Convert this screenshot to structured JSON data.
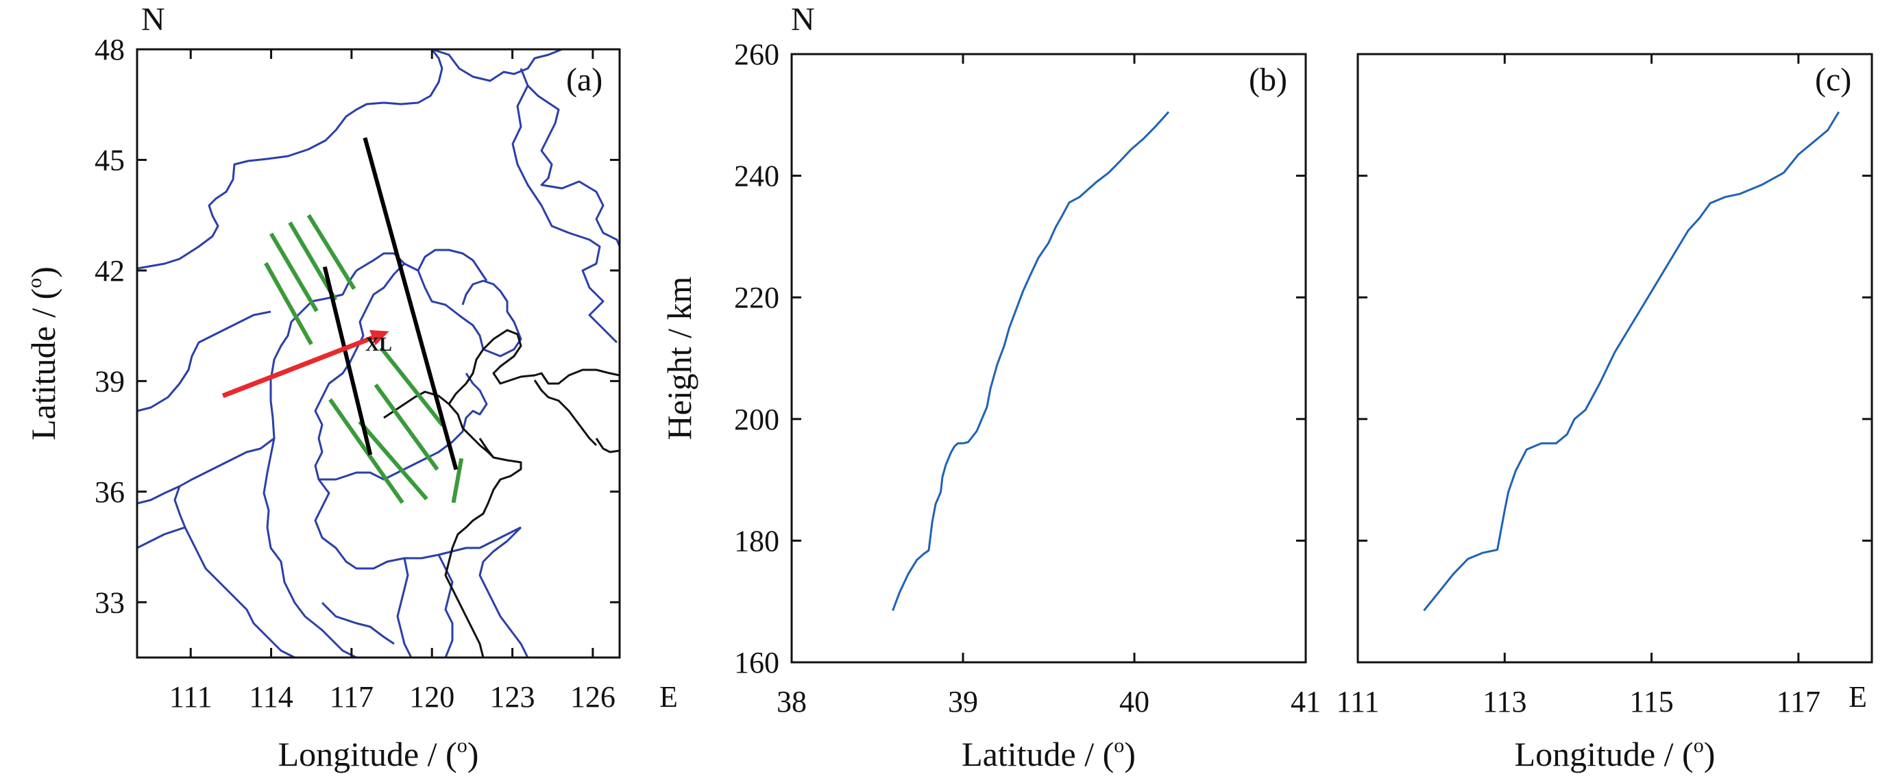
{
  "chart_data": [
    {
      "panel_label": "(a)",
      "type": "map",
      "north_label": "N",
      "xlabel": "Longitude / (",
      "xlabel_sup": "o",
      "xlabel_end": ")",
      "xlim": [
        109,
        127
      ],
      "ylim": [
        31.5,
        48
      ],
      "x_ticks": [
        "111",
        "114",
        "117",
        "120",
        "123",
        "126"
      ],
      "x_tick_values": [
        111,
        114,
        117,
        120,
        123,
        126
      ],
      "x_end_label": "E",
      "ylabel": "Latitude / (",
      "ylabel_sup": "o",
      "ylabel_end": ")",
      "y_ticks": [
        "33",
        "36",
        "39",
        "42",
        "45",
        "48"
      ],
      "y_tick_values": [
        33,
        36,
        39,
        42,
        45,
        48
      ],
      "station_label": "XL",
      "colors": {
        "boundary": "#2b3fa8",
        "coast": "#111111",
        "track": "#000000",
        "arrow": "#e8292e",
        "wave": "#3a9a3a"
      },
      "arrow": {
        "from": [
          112.2,
          38.6
        ],
        "to": [
          118.4,
          40.35
        ]
      },
      "black_lines": [
        {
          "from": [
            117.5,
            45.6
          ],
          "to": [
            120.9,
            36.6
          ]
        },
        {
          "from": [
            116.0,
            42.1
          ],
          "to": [
            117.7,
            37.0
          ]
        }
      ],
      "green_lines": [
        {
          "from": [
            114.0,
            43.0
          ],
          "to": [
            115.7,
            40.9
          ]
        },
        {
          "from": [
            114.7,
            43.3
          ],
          "to": [
            116.4,
            41.2
          ]
        },
        {
          "from": [
            115.4,
            43.5
          ],
          "to": [
            117.1,
            41.5
          ]
        },
        {
          "from": [
            113.8,
            42.2
          ],
          "to": [
            115.5,
            40.0
          ]
        },
        {
          "from": [
            118.1,
            39.9
          ],
          "to": [
            120.4,
            37.8
          ]
        },
        {
          "from": [
            117.9,
            38.9
          ],
          "to": [
            120.2,
            36.6
          ]
        },
        {
          "from": [
            117.3,
            37.9
          ],
          "to": [
            119.8,
            35.8
          ]
        },
        {
          "from": [
            116.2,
            38.5
          ],
          "to": [
            118.9,
            35.7
          ]
        },
        {
          "from": [
            121.1,
            36.9
          ],
          "to": [
            120.8,
            35.7
          ]
        }
      ]
    },
    {
      "panel_label": "(b)",
      "type": "line",
      "north_label": "N",
      "xlabel": "Latitude / (",
      "xlabel_sup": "o",
      "xlabel_end": ")",
      "xlim": [
        38,
        41
      ],
      "x_ticks": [
        "38",
        "39",
        "40",
        "41"
      ],
      "x_tick_values": [
        38,
        39,
        40,
        41
      ],
      "ylabel": "Height / km",
      "ylim": [
        160,
        260
      ],
      "y_ticks": [
        "160",
        "180",
        "200",
        "220",
        "240",
        "260"
      ],
      "y_tick_values": [
        160,
        180,
        200,
        220,
        240,
        260
      ],
      "line_color": "#1f63b5",
      "x": [
        38.59,
        38.63,
        38.68,
        38.73,
        38.77,
        38.8,
        38.82,
        38.84,
        38.87,
        38.88,
        38.9,
        38.93,
        38.95,
        38.97,
        39.0,
        39.03,
        39.08,
        39.11,
        39.14,
        39.16,
        39.2,
        39.24,
        39.27,
        39.31,
        39.35,
        39.39,
        39.44,
        39.5,
        39.54,
        39.58,
        39.62,
        39.68,
        39.72,
        39.78,
        39.85,
        39.92,
        39.98,
        40.05,
        40.12,
        40.2
      ],
      "y": [
        168.5,
        171.5,
        174.5,
        176.8,
        177.8,
        178.4,
        183.0,
        186.0,
        188.0,
        190.5,
        192.5,
        194.5,
        195.5,
        196.0,
        196.0,
        196.2,
        198.0,
        200.0,
        202.0,
        205.0,
        209.0,
        212.0,
        215.0,
        218.0,
        221.0,
        223.5,
        226.5,
        229.0,
        231.5,
        233.5,
        235.6,
        236.5,
        237.5,
        239.0,
        240.5,
        242.5,
        244.3,
        246.0,
        248.0,
        250.5
      ]
    },
    {
      "panel_label": "(c)",
      "type": "line",
      "xlabel": "Longitude / (",
      "xlabel_sup": "o",
      "xlabel_end": ")",
      "xlim": [
        111,
        118
      ],
      "x_ticks": [
        "111",
        "113",
        "115",
        "117"
      ],
      "x_tick_values": [
        111,
        113,
        115,
        117
      ],
      "x_end_label": "E",
      "ylim": [
        160,
        260
      ],
      "y_tick_values": [
        160,
        180,
        200,
        220,
        240,
        260
      ],
      "line_color": "#1f63b5",
      "x": [
        111.9,
        112.1,
        112.3,
        112.5,
        112.7,
        112.9,
        113.0,
        113.05,
        113.15,
        113.3,
        113.5,
        113.7,
        113.85,
        113.95,
        114.1,
        114.3,
        114.5,
        114.7,
        114.9,
        115.1,
        115.3,
        115.5,
        115.65,
        115.8,
        116.0,
        116.2,
        116.5,
        116.8,
        117.0,
        117.2,
        117.4,
        117.55
      ],
      "y": [
        168.5,
        171.5,
        174.5,
        177.0,
        178.0,
        178.5,
        185.0,
        188.0,
        191.5,
        195.0,
        196.0,
        196.0,
        197.5,
        200.0,
        201.5,
        206.0,
        211.0,
        215.0,
        219.0,
        223.0,
        227.0,
        231.0,
        233.0,
        235.5,
        236.5,
        237.0,
        238.5,
        240.5,
        243.5,
        245.5,
        247.5,
        250.5
      ]
    }
  ]
}
